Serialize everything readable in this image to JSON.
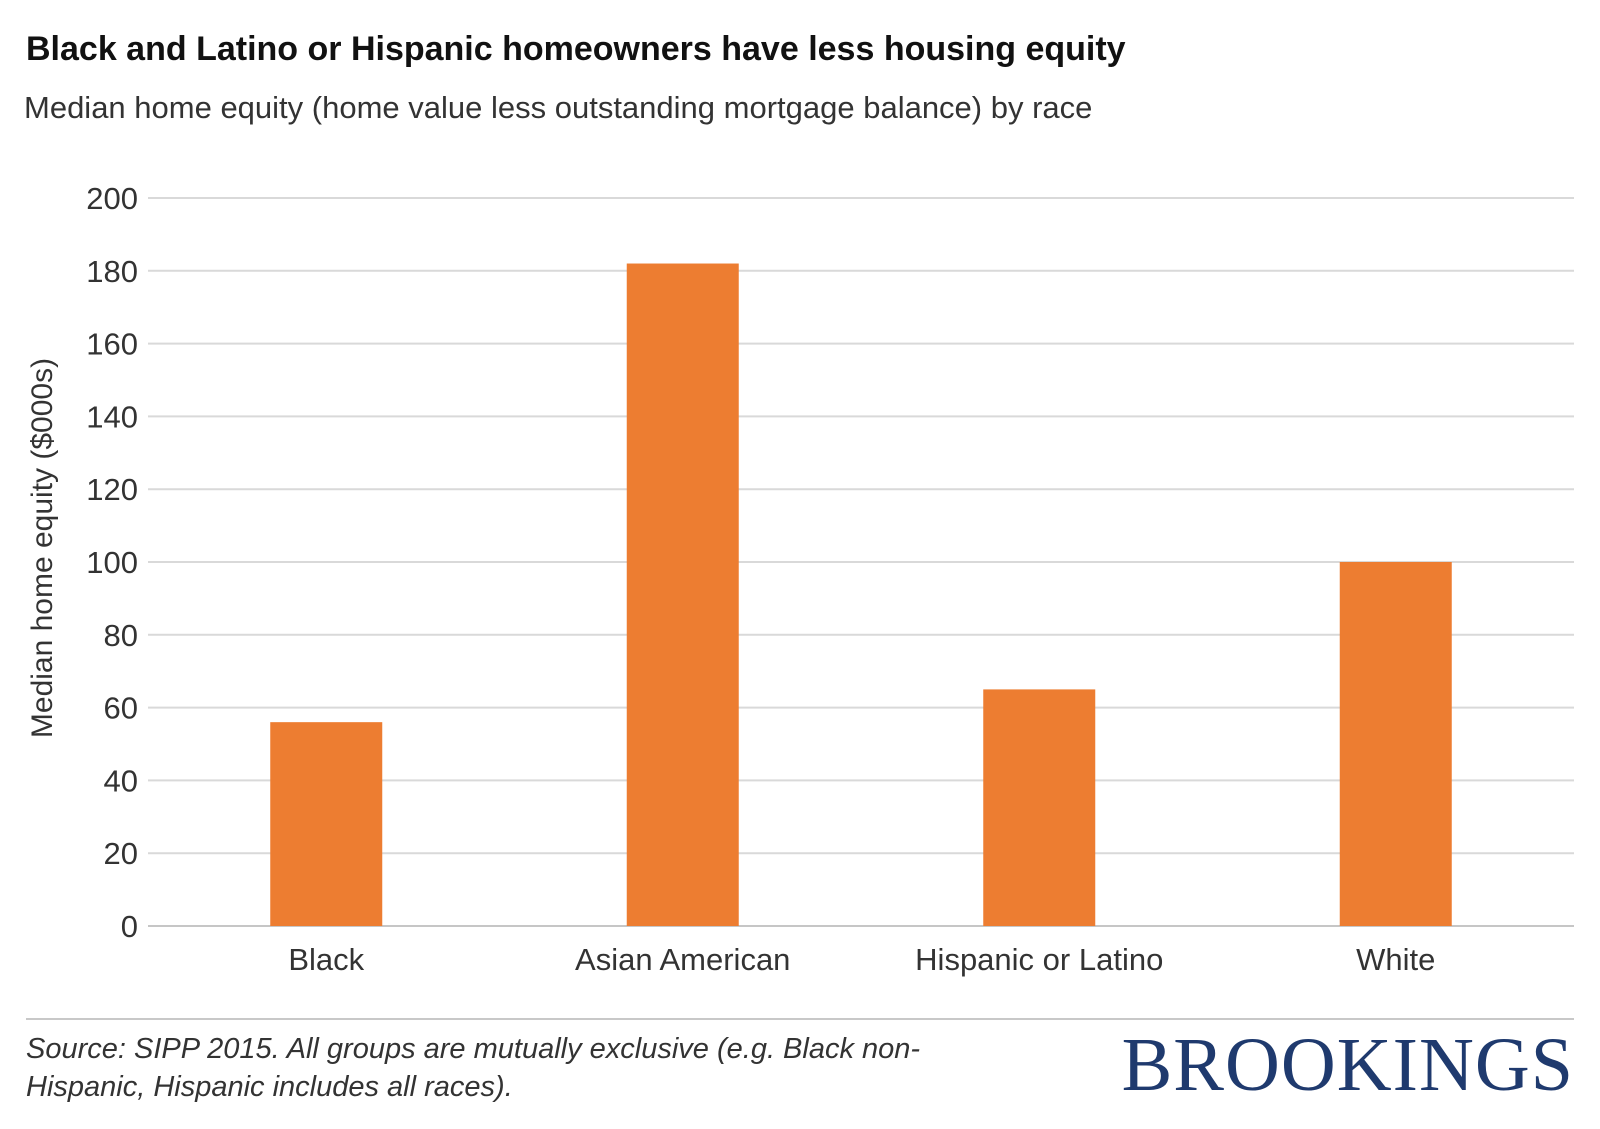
{
  "header": {
    "title": "Black and Latino or Hispanic homeowners have less housing equity",
    "subtitle": "Median home equity (home value less outstanding mortgage balance) by race"
  },
  "chart_data": {
    "type": "bar",
    "title": "Black and Latino or Hispanic homeowners have less housing equity",
    "subtitle": "Median home equity (home value less outstanding mortgage balance) by race",
    "xlabel": "",
    "ylabel": "Median home equity ($000s)",
    "categories": [
      "Black",
      "Asian American",
      "Hispanic or Latino",
      "White"
    ],
    "values": [
      56,
      182,
      65,
      100
    ],
    "ylim": [
      0,
      200
    ],
    "yticks": [
      0,
      20,
      40,
      60,
      80,
      100,
      120,
      140,
      160,
      180,
      200
    ],
    "grid": true,
    "legend": "none",
    "bar_color": "#ed7d31"
  },
  "footer": {
    "source": "Source: SIPP 2015. All groups are mutually exclusive (e.g. Black non-Hispanic, Hispanic includes all races).",
    "brand": "BROOKINGS"
  },
  "colors": {
    "bar": "#ed7d31",
    "grid": "#d9d9d9",
    "brand": "#1f3a6e"
  }
}
